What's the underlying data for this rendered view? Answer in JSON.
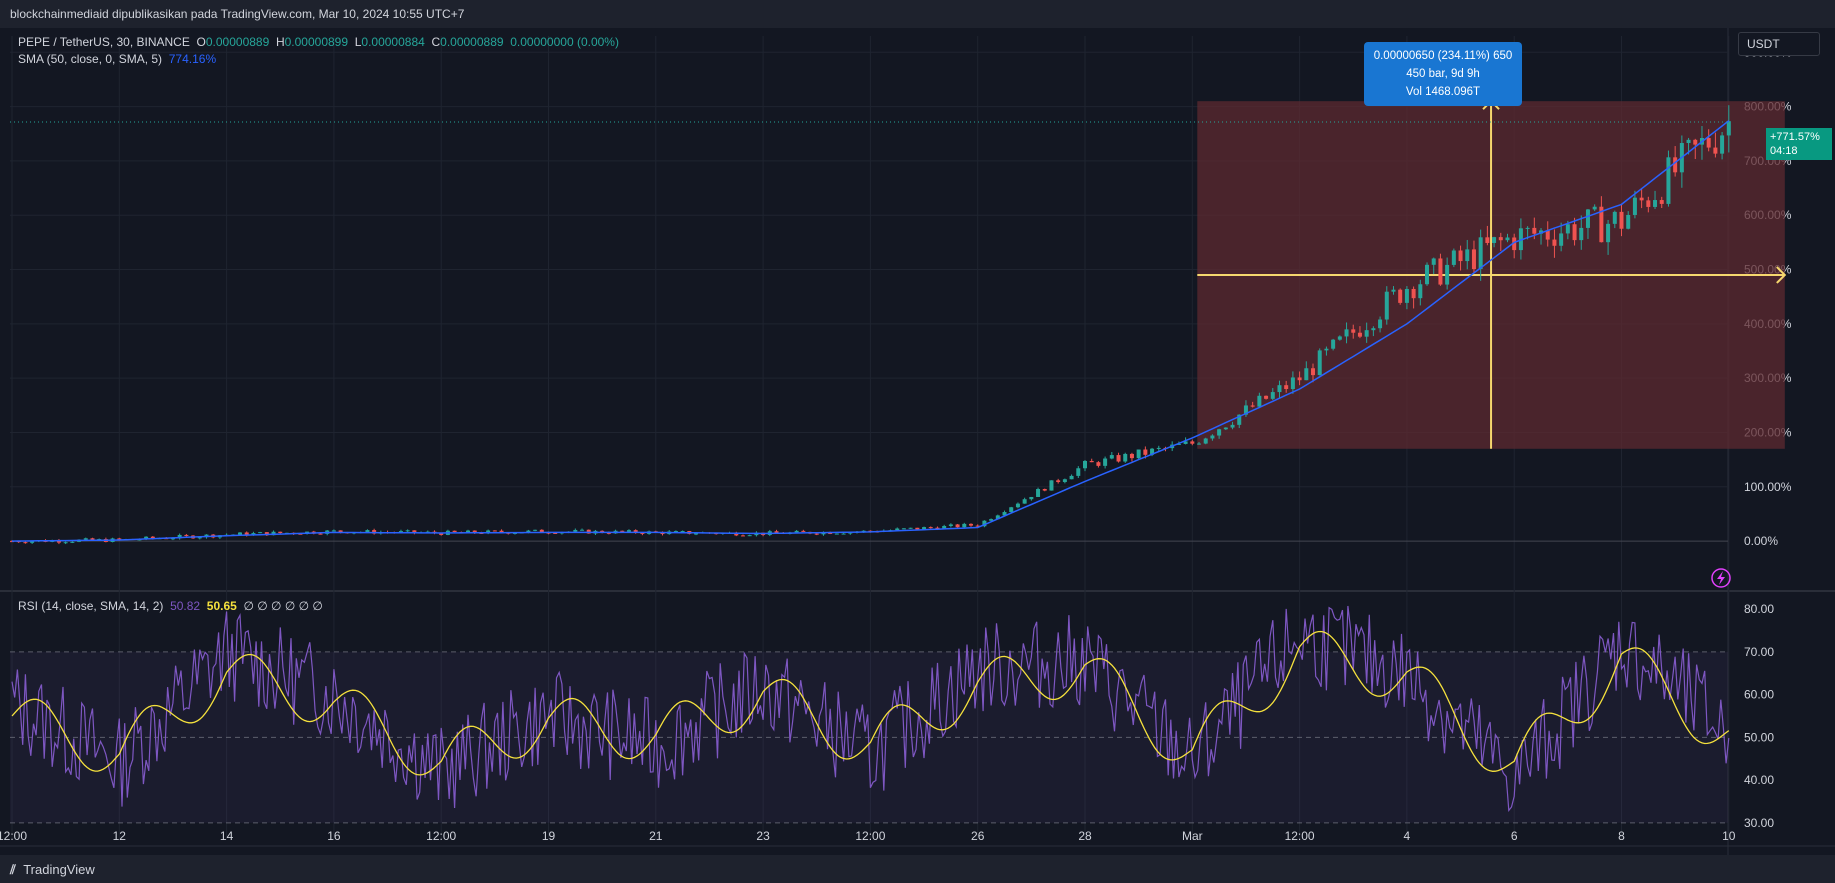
{
  "topbar": {
    "text": "blockchainmediaid dipublikasikan pada TradingView.com, Mar 10, 2024 10:55 UTC+7"
  },
  "legend": {
    "symbol": "PEPE / TetherUS, 30, BINANCE",
    "open_label": "O",
    "open": "0.00000889",
    "high_label": "H",
    "high": "0.00000899",
    "low_label": "L",
    "low": "0.00000884",
    "close_label": "C",
    "close": "0.00000889",
    "change": "0.00000000 (0.00%)",
    "sma_label": "SMA (50, close, 0, SMA, 5)",
    "sma_value": "774.16%"
  },
  "rsi_legend": {
    "label": "RSI (14, close, SMA, 14, 2)",
    "value": "50.82",
    "sma_value": "50.65",
    "extras": "∅ ∅ ∅ ∅ ∅ ∅"
  },
  "currency_button": "USDT",
  "measure_tooltip": {
    "line1": "0.00000650 (234.11%) 650",
    "line2": "450 bar, 9d 9h",
    "line3": "Vol 1468.096T"
  },
  "price_badge": {
    "value": "+771.57%",
    "countdown": "04:18"
  },
  "footer": {
    "brand": "TradingView"
  },
  "colors": {
    "background": "#131722",
    "up": "#26a69a",
    "down": "#ef5350",
    "sma": "#2962ff",
    "rsi": "#7e57c2",
    "rsi_sma": "#f5e13d",
    "measure_box": "#5d2a30",
    "measure_lines": "#f5d76e"
  },
  "chart_data": [
    {
      "type": "line",
      "title": "PEPE / TetherUS, 30, BINANCE",
      "y_unit": "%",
      "ylim": [
        -90,
        930
      ],
      "y_ticks": [
        0,
        100,
        200,
        300,
        400,
        500,
        600,
        700,
        800,
        900
      ],
      "y_tick_labels": [
        "0.00%",
        "100.00%",
        "200.00%",
        "300.00%",
        "400.00%",
        "500.00%",
        "600.00%",
        "700.00%",
        "800.00%",
        "900.00%"
      ],
      "x_tick_labels": [
        "12:00",
        "12",
        "14",
        "16",
        "12:00",
        "19",
        "21",
        "23",
        "12:00",
        "26",
        "28",
        "Mar",
        "12:00",
        "4",
        "6",
        "8",
        "10"
      ],
      "grid": true,
      "series": [
        {
          "name": "PEPE / TetherUS",
          "x": [
            "12:00",
            "12",
            "14",
            "16",
            "12:00",
            "19",
            "21",
            "23",
            "12:00",
            "26",
            "28",
            "Mar",
            "12:00",
            "4",
            "6",
            "8",
            "10"
          ],
          "values": [
            0,
            2,
            12,
            18,
            15,
            18,
            16,
            14,
            18,
            30,
            140,
            180,
            300,
            470,
            560,
            590,
            772
          ]
        },
        {
          "name": "SMA (50, close, 0, SMA, 5)",
          "x": [
            "12:00",
            "12",
            "14",
            "16",
            "12:00",
            "19",
            "21",
            "23",
            "12:00",
            "26",
            "28",
            "Mar",
            "12:00",
            "4",
            "6",
            "8",
            "10"
          ],
          "values": [
            0,
            2,
            10,
            16,
            15,
            16,
            16,
            14,
            17,
            25,
            110,
            190,
            280,
            400,
            550,
            620,
            774
          ]
        }
      ],
      "measure": {
        "from_x": "Mar",
        "to_x": "10",
        "low_pct": 170,
        "high_pct": 810,
        "change": "0.00000650 (234.11%) 650",
        "bars": "450 bar, 9d 9h",
        "volume": "Vol 1468.096T"
      },
      "last_value": 771.57
    },
    {
      "type": "line",
      "title": "RSI (14, close, SMA, 14, 2)",
      "ylim": [
        26,
        84
      ],
      "y_ticks": [
        30,
        40,
        50,
        60,
        70,
        80
      ],
      "y_tick_labels": [
        "30.00",
        "40.00",
        "50.00",
        "60.00",
        "70.00",
        "80.00"
      ],
      "bands": [
        30,
        50,
        70
      ],
      "x_tick_labels": [
        "12:00",
        "12",
        "14",
        "16",
        "12:00",
        "19",
        "21",
        "23",
        "12:00",
        "26",
        "28",
        "Mar",
        "12:00",
        "4",
        "6",
        "8",
        "10"
      ],
      "series": [
        {
          "name": "RSI",
          "x": [
            "12:00",
            "12",
            "14",
            "16",
            "12:00",
            "19",
            "21",
            "23",
            "12:00",
            "26",
            "28",
            "Mar",
            "12:00",
            "4",
            "6",
            "8",
            "10"
          ],
          "values": [
            58,
            44,
            70,
            60,
            42,
            55,
            48,
            62,
            46,
            66,
            68,
            44,
            74,
            65,
            40,
            72,
            51
          ]
        },
        {
          "name": "RSI SMA",
          "x": [
            "12:00",
            "12",
            "14",
            "16",
            "12:00",
            "19",
            "21",
            "23",
            "12:00",
            "26",
            "28",
            "Mar",
            "12:00",
            "4",
            "6",
            "8",
            "10"
          ],
          "values": [
            55,
            46,
            65,
            58,
            44,
            54,
            50,
            60,
            48,
            62,
            66,
            46,
            70,
            64,
            43,
            68,
            50
          ]
        }
      ],
      "last_value": 50.82,
      "last_sma": 50.65
    }
  ]
}
